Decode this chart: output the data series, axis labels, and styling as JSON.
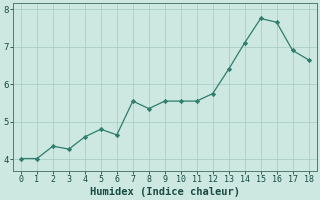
{
  "x": [
    0,
    1,
    2,
    3,
    4,
    5,
    6,
    7,
    8,
    9,
    10,
    11,
    12,
    13,
    14,
    15,
    16,
    17,
    18
  ],
  "y": [
    4.02,
    4.02,
    4.35,
    4.27,
    4.6,
    4.8,
    4.65,
    5.55,
    5.35,
    5.55,
    5.55,
    5.55,
    5.75,
    6.4,
    7.1,
    7.75,
    7.65,
    6.9,
    6.65
  ],
  "line_color": "#2e7d6e",
  "marker_color": "#2e7d6e",
  "bg_color": "#cce8e0",
  "grid_color": "#aacec6",
  "axis_label_color": "#1a4a44",
  "tick_color": "#1a4a44",
  "spine_color": "#557a74",
  "xlabel": "Humidex (Indice chaleur)",
  "xlabel_fontsize": 7.5,
  "xlabel_fontweight": "bold",
  "ylim_min": 3.7,
  "ylim_max": 8.15,
  "xlim_min": -0.5,
  "xlim_max": 18.5,
  "yticks": [
    4,
    5,
    6,
    7,
    8
  ],
  "ytick_fontsize": 6.5,
  "xticks": [
    0,
    1,
    2,
    3,
    4,
    5,
    6,
    7,
    8,
    9,
    10,
    11,
    12,
    13,
    14,
    15,
    16,
    17,
    18
  ],
  "xtick_fontsize": 6.0,
  "linewidth": 0.9,
  "markersize": 2.2
}
